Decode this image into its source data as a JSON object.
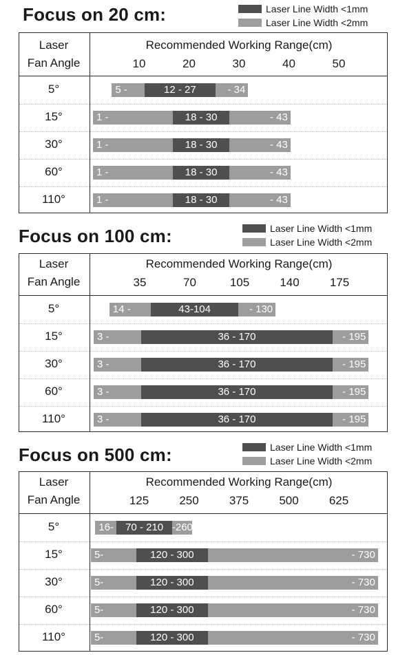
{
  "colors": {
    "dark": "#4f4f4f",
    "light": "#9d9d9d",
    "border": "#2a2a2a"
  },
  "header": {
    "angle_line1": "Laser",
    "angle_line2": "Fan Angle",
    "range_title": "Recommended Working Range(cm)"
  },
  "legend": {
    "dark_label": "Laser Line Width <1mm",
    "light_label": "Laser Line Width <2mm"
  },
  "chart_data": [
    {
      "type": "bar",
      "title": "Focus on 20 cm:",
      "axis_ticks": [
        10,
        20,
        30,
        40,
        50
      ],
      "rows": [
        {
          "angle": "5°",
          "start": 5,
          "dark_start": 12,
          "dark_end": 27,
          "end": 34,
          "left_label": "5 -",
          "mid_label": "12 - 27",
          "right_label": "- 34"
        },
        {
          "angle": "15°",
          "start": 1,
          "dark_start": 18,
          "dark_end": 30,
          "end": 43,
          "left_label": "1 -",
          "mid_label": "18 - 30",
          "right_label": "- 43"
        },
        {
          "angle": "30°",
          "start": 1,
          "dark_start": 18,
          "dark_end": 30,
          "end": 43,
          "left_label": "1 -",
          "mid_label": "18 - 30",
          "right_label": "- 43"
        },
        {
          "angle": "60°",
          "start": 1,
          "dark_start": 18,
          "dark_end": 30,
          "end": 43,
          "left_label": "1 -",
          "mid_label": "18 - 30",
          "right_label": "- 43"
        },
        {
          "angle": "110°",
          "start": 1,
          "dark_start": 18,
          "dark_end": 30,
          "end": 43,
          "left_label": "1 -",
          "mid_label": "18 - 30",
          "right_label": "- 43"
        }
      ]
    },
    {
      "type": "bar",
      "title": "Focus on 100 cm:",
      "axis_ticks": [
        35,
        70,
        105,
        140,
        175
      ],
      "rows": [
        {
          "angle": "5°",
          "start": 14,
          "dark_start": 43,
          "dark_end": 104,
          "end": 130,
          "left_label": "14 -",
          "mid_label": "43-104",
          "right_label": "- 130"
        },
        {
          "angle": "15°",
          "start": 3,
          "dark_start": 36,
          "dark_end": 170,
          "end": 195,
          "left_label": "3 -",
          "mid_label": "36 - 170",
          "right_label": "- 195"
        },
        {
          "angle": "30°",
          "start": 3,
          "dark_start": 36,
          "dark_end": 170,
          "end": 195,
          "left_label": "3 -",
          "mid_label": "36 - 170",
          "right_label": "- 195"
        },
        {
          "angle": "60°",
          "start": 3,
          "dark_start": 36,
          "dark_end": 170,
          "end": 195,
          "left_label": "3 -",
          "mid_label": "36 - 170",
          "right_label": "- 195"
        },
        {
          "angle": "110°",
          "start": 3,
          "dark_start": 36,
          "dark_end": 170,
          "end": 195,
          "left_label": "3 -",
          "mid_label": "36 - 170",
          "right_label": "- 195"
        }
      ]
    },
    {
      "type": "bar",
      "title": "Focus on 500 cm:",
      "axis_ticks": [
        125,
        250,
        375,
        500,
        625
      ],
      "rows": [
        {
          "angle": "5°",
          "start": 16,
          "dark_start": 70,
          "dark_end": 210,
          "end": 260,
          "left_label": "16-",
          "mid_label": "70 - 210",
          "right_label": "-260"
        },
        {
          "angle": "15°",
          "start": 5,
          "dark_start": 120,
          "dark_end": 300,
          "end": 730,
          "left_label": "5-",
          "mid_label": "120 - 300",
          "right_label": "- 730"
        },
        {
          "angle": "30°",
          "start": 5,
          "dark_start": 120,
          "dark_end": 300,
          "end": 730,
          "left_label": "5-",
          "mid_label": "120 - 300",
          "right_label": "- 730"
        },
        {
          "angle": "60°",
          "start": 5,
          "dark_start": 120,
          "dark_end": 300,
          "end": 730,
          "left_label": "5-",
          "mid_label": "120 - 300",
          "right_label": "- 730"
        },
        {
          "angle": "110°",
          "start": 5,
          "dark_start": 120,
          "dark_end": 300,
          "end": 730,
          "left_label": "5-",
          "mid_label": "120 - 300",
          "right_label": "- 730"
        }
      ]
    }
  ]
}
